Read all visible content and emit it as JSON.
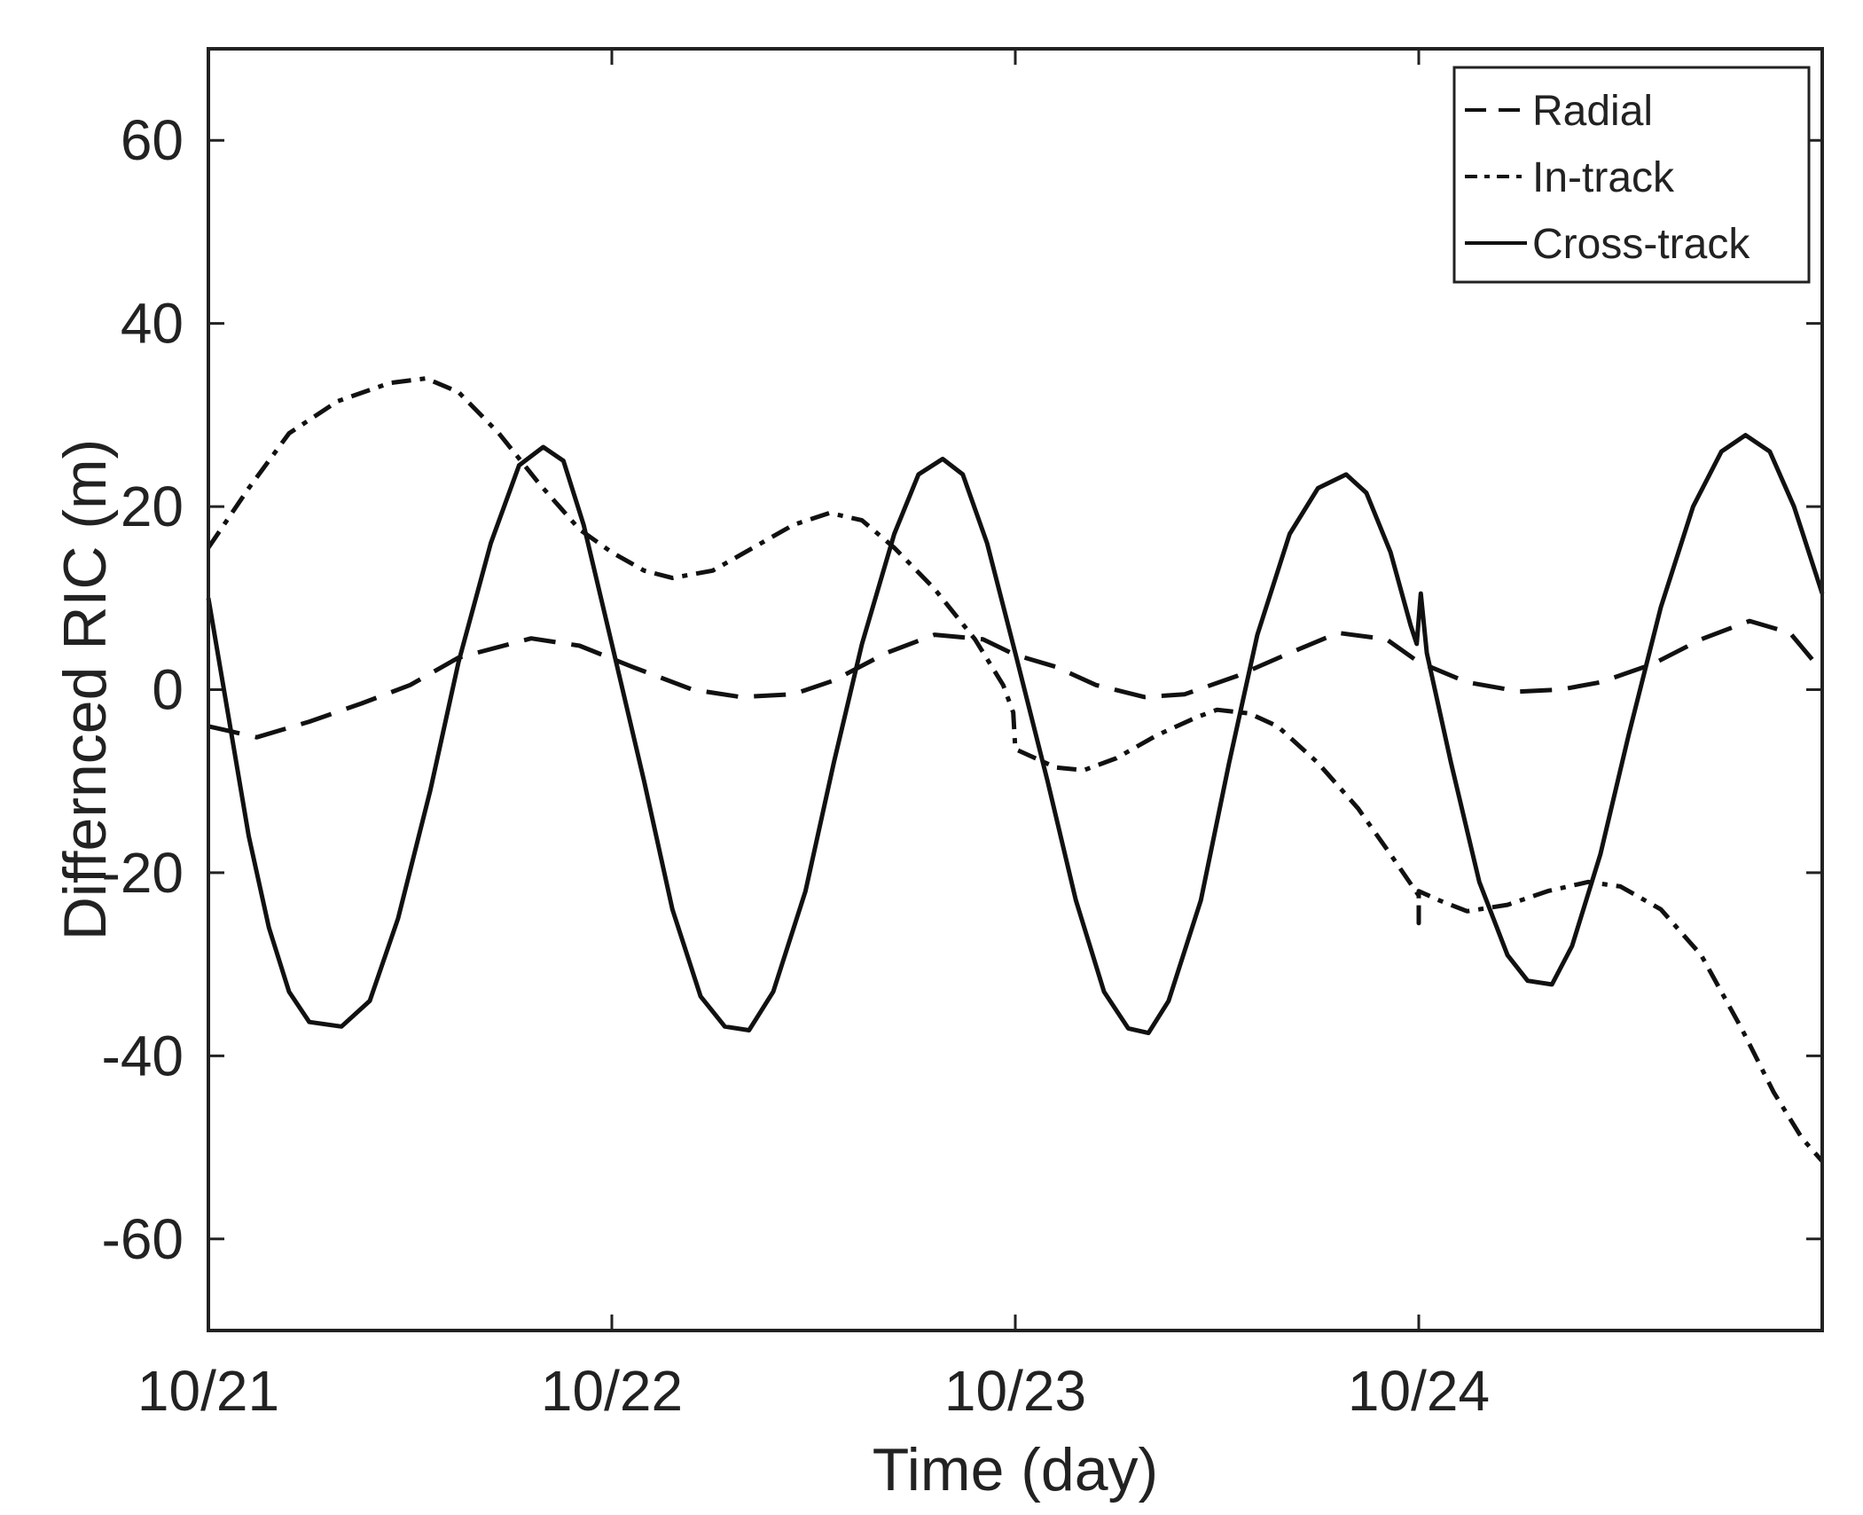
{
  "chart_data": {
    "type": "line",
    "xlabel": "Time (day)",
    "ylabel": "Differnced RIC (m)",
    "xlim": [
      0,
      4
    ],
    "ylim": [
      -70,
      70
    ],
    "xticks": [
      {
        "value": 0,
        "label": "10/21"
      },
      {
        "value": 1,
        "label": "10/22"
      },
      {
        "value": 2,
        "label": "10/23"
      },
      {
        "value": 3,
        "label": "10/24"
      }
    ],
    "yticks": [
      {
        "value": 60,
        "label": "60"
      },
      {
        "value": 40,
        "label": "40"
      },
      {
        "value": 20,
        "label": "20"
      },
      {
        "value": 0,
        "label": "0"
      },
      {
        "value": -20,
        "label": "-20"
      },
      {
        "value": -40,
        "label": "-40"
      },
      {
        "value": -60,
        "label": "-60"
      }
    ],
    "legend_position": "top-right",
    "series": [
      {
        "name": "Radial",
        "style": "dashed",
        "color": "#111111",
        "points": [
          [
            0,
            -4
          ],
          [
            0.12,
            -5.2
          ],
          [
            0.25,
            -3.5
          ],
          [
            0.38,
            -1.5
          ],
          [
            0.5,
            0.5
          ],
          [
            0.62,
            3.5
          ],
          [
            0.8,
            5.6
          ],
          [
            0.92,
            4.8
          ],
          [
            1.05,
            2.5
          ],
          [
            1.2,
            0
          ],
          [
            1.32,
            -0.8
          ],
          [
            1.45,
            -0.5
          ],
          [
            1.55,
            1
          ],
          [
            1.68,
            4
          ],
          [
            1.8,
            6
          ],
          [
            1.92,
            5.5
          ],
          [
            2.0,
            3.8
          ],
          [
            2.1,
            2.5
          ],
          [
            2.2,
            0.5
          ],
          [
            2.32,
            -0.8
          ],
          [
            2.42,
            -0.5
          ],
          [
            2.55,
            1.5
          ],
          [
            2.68,
            4
          ],
          [
            2.8,
            6.2
          ],
          [
            2.92,
            5.5
          ],
          [
            3.0,
            3
          ],
          [
            3.12,
            0.8
          ],
          [
            3.25,
            -0.2
          ],
          [
            3.35,
            0
          ],
          [
            3.45,
            0.8
          ],
          [
            3.58,
            2.8
          ],
          [
            3.7,
            5.5
          ],
          [
            3.82,
            7.5
          ],
          [
            3.92,
            6.2
          ],
          [
            4.0,
            2
          ]
        ]
      },
      {
        "name": "In-track",
        "style": "dash-dot",
        "color": "#111111",
        "points": [
          [
            0,
            15.5
          ],
          [
            0.1,
            22
          ],
          [
            0.2,
            28
          ],
          [
            0.32,
            31.5
          ],
          [
            0.45,
            33.5
          ],
          [
            0.54,
            34
          ],
          [
            0.62,
            32.5
          ],
          [
            0.72,
            28
          ],
          [
            0.82,
            22.5
          ],
          [
            0.92,
            17.5
          ],
          [
            1.0,
            15
          ],
          [
            1.08,
            13
          ],
          [
            1.15,
            12.2
          ],
          [
            1.25,
            13
          ],
          [
            1.35,
            15.5
          ],
          [
            1.45,
            18
          ],
          [
            1.54,
            19.3
          ],
          [
            1.62,
            18.5
          ],
          [
            1.7,
            15.5
          ],
          [
            1.8,
            11
          ],
          [
            1.9,
            5.5
          ],
          [
            1.97,
            0.5
          ],
          [
            1.995,
            -2.5
          ],
          [
            2.0,
            -6.5
          ],
          [
            2.05,
            -7.5
          ],
          [
            2.1,
            -8.5
          ],
          [
            2.17,
            -8.8
          ],
          [
            2.25,
            -7.5
          ],
          [
            2.35,
            -5
          ],
          [
            2.45,
            -3
          ],
          [
            2.5,
            -2.2
          ],
          [
            2.58,
            -2.6
          ],
          [
            2.65,
            -4
          ],
          [
            2.75,
            -8
          ],
          [
            2.85,
            -13
          ],
          [
            2.93,
            -18
          ],
          [
            3.0,
            -22.5
          ],
          [
            3.0,
            -25.5
          ],
          [
            3.0,
            -22
          ],
          [
            3.05,
            -23
          ],
          [
            3.12,
            -24.2
          ],
          [
            3.22,
            -23.5
          ],
          [
            3.32,
            -22
          ],
          [
            3.42,
            -21
          ],
          [
            3.5,
            -21.5
          ],
          [
            3.6,
            -24
          ],
          [
            3.7,
            -29
          ],
          [
            3.8,
            -37
          ],
          [
            3.88,
            -44
          ],
          [
            3.95,
            -49
          ],
          [
            4.0,
            -51.5
          ]
        ]
      },
      {
        "name": "Cross-track",
        "style": "solid",
        "color": "#111111",
        "points": [
          [
            0,
            10
          ],
          [
            0.05,
            -3
          ],
          [
            0.1,
            -16
          ],
          [
            0.15,
            -26
          ],
          [
            0.2,
            -33
          ],
          [
            0.25,
            -36.3
          ],
          [
            0.33,
            -36.8
          ],
          [
            0.4,
            -34
          ],
          [
            0.47,
            -25
          ],
          [
            0.55,
            -11
          ],
          [
            0.62,
            3
          ],
          [
            0.7,
            16
          ],
          [
            0.77,
            24.5
          ],
          [
            0.83,
            26.5
          ],
          [
            0.88,
            25
          ],
          [
            0.93,
            18
          ],
          [
            1.0,
            5
          ],
          [
            1.08,
            -10
          ],
          [
            1.15,
            -24
          ],
          [
            1.22,
            -33.5
          ],
          [
            1.28,
            -36.8
          ],
          [
            1.34,
            -37.2
          ],
          [
            1.4,
            -33
          ],
          [
            1.48,
            -22
          ],
          [
            1.55,
            -8
          ],
          [
            1.62,
            5
          ],
          [
            1.7,
            17
          ],
          [
            1.76,
            23.5
          ],
          [
            1.82,
            25.2
          ],
          [
            1.87,
            23.5
          ],
          [
            1.93,
            16
          ],
          [
            2.0,
            4
          ],
          [
            2.08,
            -10
          ],
          [
            2.15,
            -23
          ],
          [
            2.22,
            -33
          ],
          [
            2.28,
            -37
          ],
          [
            2.33,
            -37.5
          ],
          [
            2.38,
            -34
          ],
          [
            2.46,
            -23
          ],
          [
            2.53,
            -8
          ],
          [
            2.6,
            6
          ],
          [
            2.68,
            17
          ],
          [
            2.75,
            22
          ],
          [
            2.82,
            23.5
          ],
          [
            2.87,
            21.5
          ],
          [
            2.93,
            15
          ],
          [
            2.98,
            7
          ],
          [
            2.995,
            5
          ],
          [
            3.005,
            10.5
          ],
          [
            3.02,
            4
          ],
          [
            3.08,
            -8
          ],
          [
            3.15,
            -21
          ],
          [
            3.22,
            -29
          ],
          [
            3.27,
            -31.8
          ],
          [
            3.33,
            -32.2
          ],
          [
            3.38,
            -28
          ],
          [
            3.45,
            -18
          ],
          [
            3.52,
            -5
          ],
          [
            3.6,
            9
          ],
          [
            3.68,
            20
          ],
          [
            3.75,
            26
          ],
          [
            3.81,
            27.8
          ],
          [
            3.87,
            26
          ],
          [
            3.93,
            20
          ],
          [
            4.0,
            10.5
          ]
        ]
      }
    ]
  }
}
